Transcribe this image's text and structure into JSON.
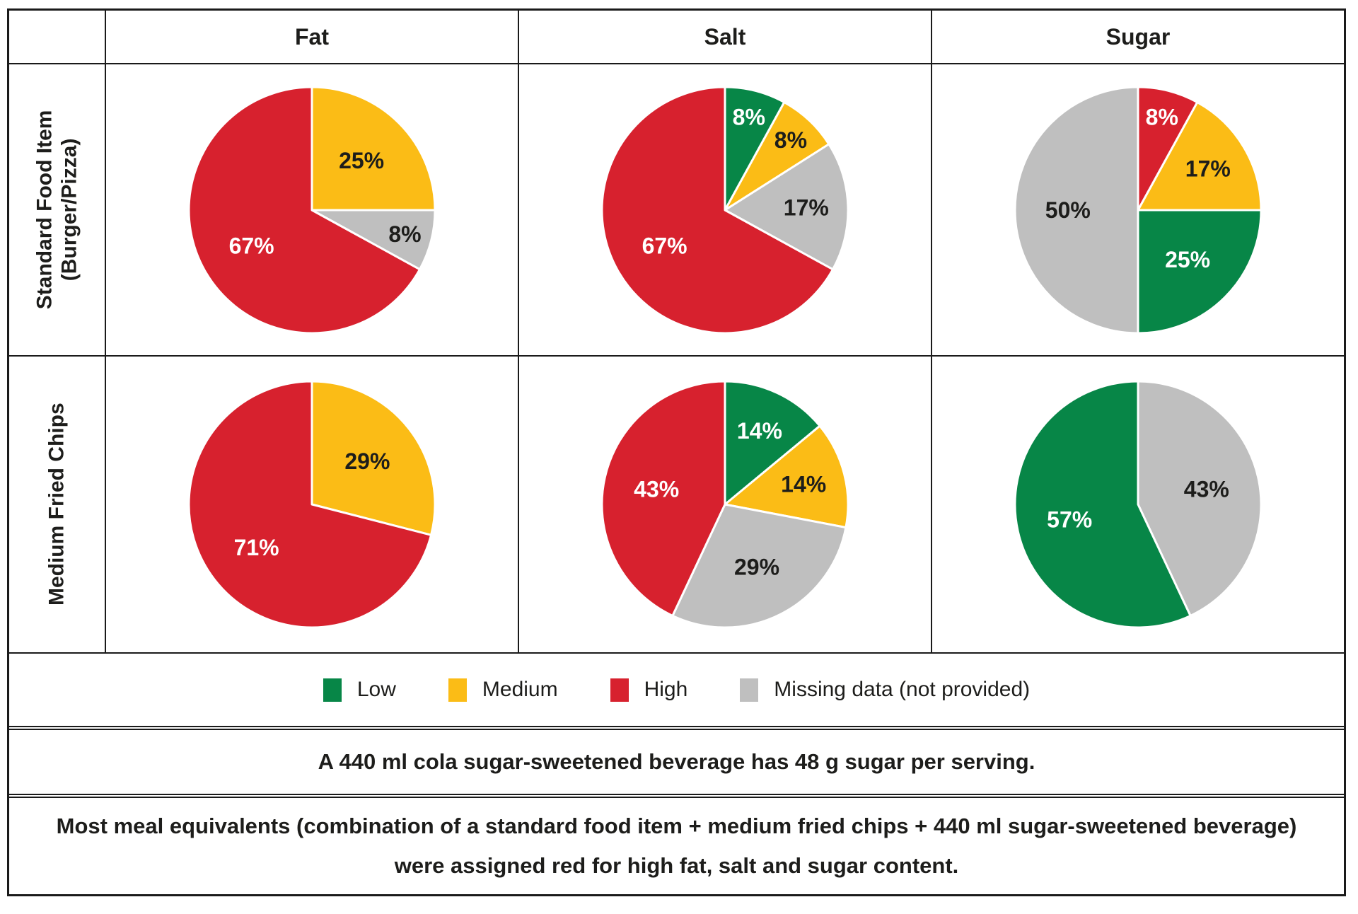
{
  "colors": {
    "Low": "#078647",
    "Medium": "#fbbc16",
    "High": "#d7212e",
    "Missing": "#bfbfbf",
    "border": "#1a1a1a"
  },
  "label_text_colors": {
    "Low": "#ffffff",
    "Medium": "#1d1d1b",
    "High": "#ffffff",
    "Missing": "#1d1d1b"
  },
  "header": {
    "col1": "Fat",
    "col2": "Salt",
    "col3": "Sugar"
  },
  "row_labels": {
    "row1_line1": "Standard Food Item",
    "row1_line2": "(Burger/Pizza)",
    "row2": "Medium Fried Chips"
  },
  "legend": {
    "items": [
      {
        "label": "Low",
        "category": "Low"
      },
      {
        "label": "Medium",
        "category": "Medium"
      },
      {
        "label": "High",
        "category": "High"
      },
      {
        "label": "Missing data (not provided)",
        "category": "Missing"
      }
    ]
  },
  "notes": {
    "note1": "A 440 ml cola sugar-sweetened beverage has 48 g sugar per serving.",
    "note2": "Most meal equivalents (combination of a standard food item + medium fried chips + 440 ml sugar-sweetened beverage) were assigned red for high fat, salt and sugar content."
  },
  "chart_data": [
    {
      "type": "pie",
      "row": "Standard Food Item (Burger/Pizza)",
      "column": "Fat",
      "start_angle_deg": 0,
      "direction": "clockwise",
      "slices": [
        {
          "category": "Medium",
          "value": 25,
          "label": "25%"
        },
        {
          "category": "Missing",
          "value": 8,
          "label": "8%"
        },
        {
          "category": "High",
          "value": 67,
          "label": "67%"
        }
      ]
    },
    {
      "type": "pie",
      "row": "Standard Food Item (Burger/Pizza)",
      "column": "Salt",
      "start_angle_deg": 0,
      "direction": "clockwise",
      "slices": [
        {
          "category": "Low",
          "value": 8,
          "label": "8%"
        },
        {
          "category": "Medium",
          "value": 8,
          "label": "8%"
        },
        {
          "category": "Missing",
          "value": 17,
          "label": "17%"
        },
        {
          "category": "High",
          "value": 67,
          "label": "67%"
        }
      ]
    },
    {
      "type": "pie",
      "row": "Standard Food Item (Burger/Pizza)",
      "column": "Sugar",
      "start_angle_deg": 0,
      "direction": "clockwise",
      "slices": [
        {
          "category": "High",
          "value": 8,
          "label": "8%"
        },
        {
          "category": "Medium",
          "value": 17,
          "label": "17%"
        },
        {
          "category": "Low",
          "value": 25,
          "label": "25%"
        },
        {
          "category": "Missing",
          "value": 50,
          "label": "50%"
        }
      ]
    },
    {
      "type": "pie",
      "row": "Medium Fried Chips",
      "column": "Fat",
      "start_angle_deg": 0,
      "direction": "clockwise",
      "slices": [
        {
          "category": "Medium",
          "value": 29,
          "label": "29%"
        },
        {
          "category": "High",
          "value": 71,
          "label": "71%"
        }
      ]
    },
    {
      "type": "pie",
      "row": "Medium Fried Chips",
      "column": "Salt",
      "start_angle_deg": 0,
      "direction": "clockwise",
      "slices": [
        {
          "category": "Low",
          "value": 14,
          "label": "14%"
        },
        {
          "category": "Medium",
          "value": 14,
          "label": "14%"
        },
        {
          "category": "Missing",
          "value": 29,
          "label": "29%"
        },
        {
          "category": "High",
          "value": 43,
          "label": "43%"
        }
      ]
    },
    {
      "type": "pie",
      "row": "Medium Fried Chips",
      "column": "Sugar",
      "start_angle_deg": 0,
      "direction": "clockwise",
      "slices": [
        {
          "category": "Missing",
          "value": 43,
          "label": "43%"
        },
        {
          "category": "Low",
          "value": 57,
          "label": "57%"
        }
      ]
    }
  ]
}
